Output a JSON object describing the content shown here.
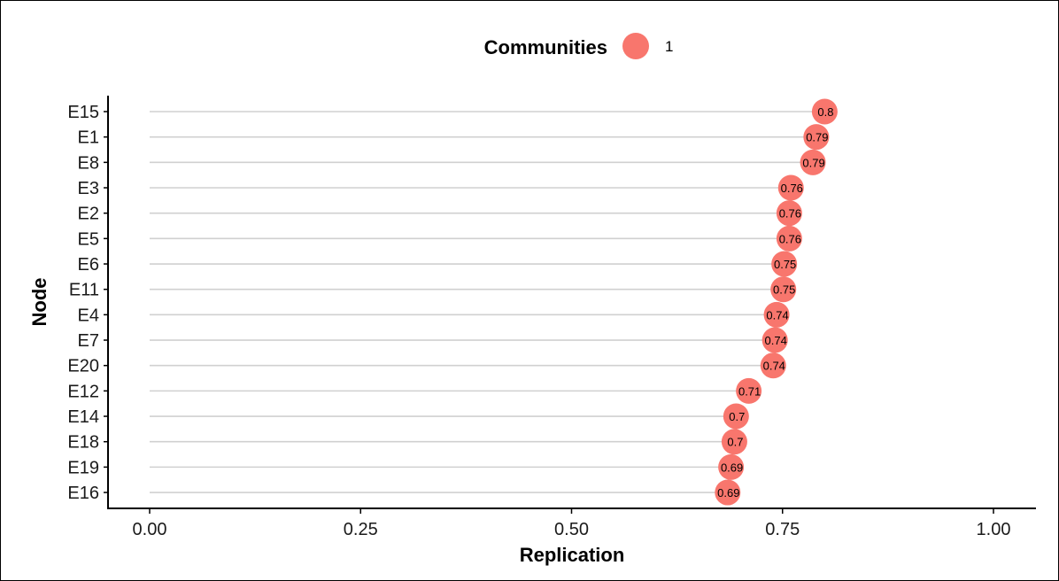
{
  "chart_data": {
    "type": "scatter",
    "xlabel": "Replication",
    "ylabel": "Node",
    "xlim": [
      0,
      1
    ],
    "xticks": [
      "0.00",
      "0.25",
      "0.50",
      "0.75",
      "1.00"
    ],
    "xtick_values": [
      0,
      0.25,
      0.5,
      0.75,
      1
    ],
    "grid": "horizontal segments per node",
    "legend": {
      "title": "Communities",
      "entries": [
        {
          "label": "1",
          "color": "#F8766D"
        }
      ],
      "placement": "top"
    },
    "series": [
      {
        "name": "1",
        "color": "#F8766D",
        "points": [
          {
            "node": "E15",
            "value": 0.8,
            "label": "0.8"
          },
          {
            "node": "E1",
            "value": 0.79,
            "label": "0.79"
          },
          {
            "node": "E8",
            "value": 0.786,
            "label": "0.79"
          },
          {
            "node": "E3",
            "value": 0.76,
            "label": "0.76"
          },
          {
            "node": "E2",
            "value": 0.758,
            "label": "0.76"
          },
          {
            "node": "E5",
            "value": 0.758,
            "label": "0.76"
          },
          {
            "node": "E6",
            "value": 0.752,
            "label": "0.75"
          },
          {
            "node": "E11",
            "value": 0.751,
            "label": "0.75"
          },
          {
            "node": "E4",
            "value": 0.743,
            "label": "0.74"
          },
          {
            "node": "E7",
            "value": 0.741,
            "label": "0.74"
          },
          {
            "node": "E20",
            "value": 0.739,
            "label": "0.74"
          },
          {
            "node": "E12",
            "value": 0.71,
            "label": "0.71"
          },
          {
            "node": "E14",
            "value": 0.695,
            "label": "0.7"
          },
          {
            "node": "E18",
            "value": 0.693,
            "label": "0.7"
          },
          {
            "node": "E19",
            "value": 0.689,
            "label": "0.69"
          },
          {
            "node": "E16",
            "value": 0.685,
            "label": "0.69"
          }
        ]
      }
    ]
  }
}
